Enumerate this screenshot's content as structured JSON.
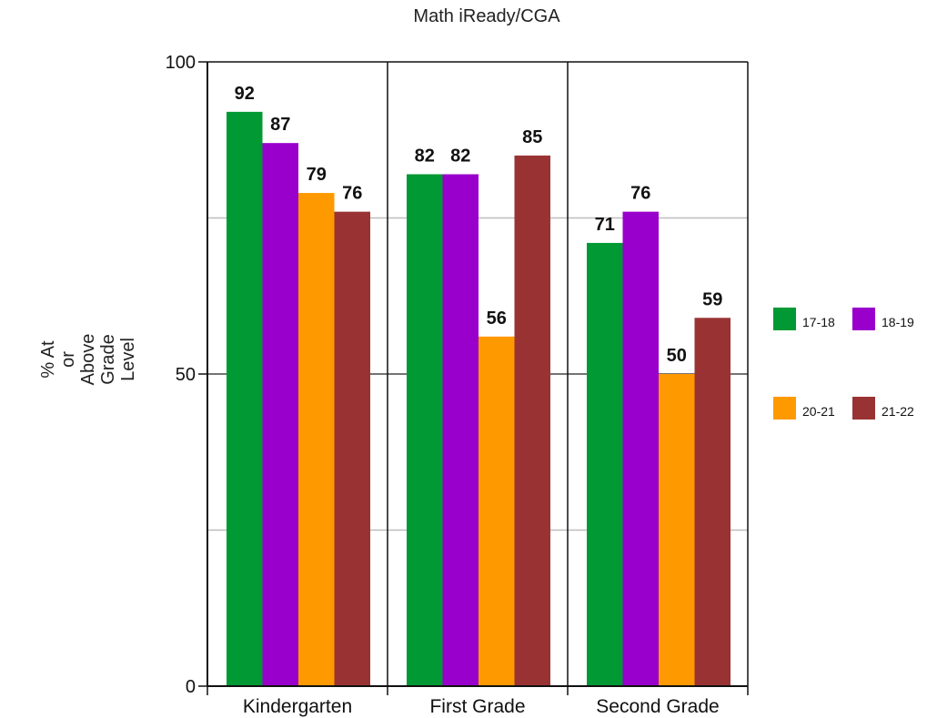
{
  "chart_data": {
    "type": "bar",
    "title": "Math iReady/CGA",
    "ylabel_lines": [
      "% At",
      "or",
      "Above",
      "Grade",
      "Level"
    ],
    "xlabel": "",
    "categories": [
      "Kindergarten",
      "First Grade",
      "Second Grade"
    ],
    "ylim": [
      0,
      100
    ],
    "yticks": [
      0,
      50,
      100
    ],
    "grid": true,
    "legend_position": "right",
    "series": [
      {
        "name": "17-18",
        "color": "#009933",
        "values": [
          92,
          82,
          71
        ]
      },
      {
        "name": "18-19",
        "color": "#9900CC",
        "values": [
          87,
          82,
          76
        ]
      },
      {
        "name": "20-21",
        "color": "#FF9900",
        "values": [
          79,
          56,
          50
        ]
      },
      {
        "name": "21-22",
        "color": "#993333",
        "values": [
          76,
          85,
          59
        ]
      }
    ]
  }
}
